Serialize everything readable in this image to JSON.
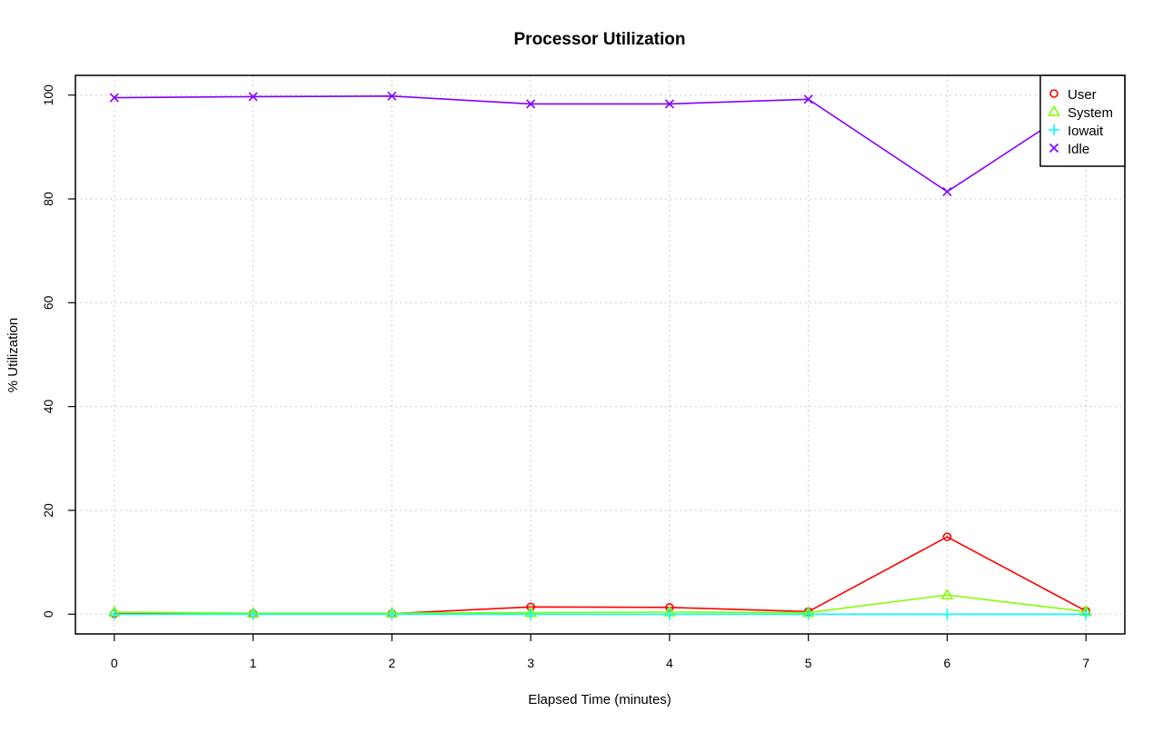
{
  "chart_data": {
    "type": "line",
    "title": "Processor Utilization",
    "xlabel": "Elapsed Time (minutes)",
    "ylabel": "% Utilization",
    "x": [
      0,
      1,
      2,
      3,
      4,
      5,
      6,
      7
    ],
    "xlim": [
      -0.28,
      7.28
    ],
    "ylim": [
      -3.8,
      103.8
    ],
    "xticks": [
      0,
      1,
      2,
      3,
      4,
      5,
      6,
      7
    ],
    "yticks": [
      0,
      20,
      40,
      60,
      80,
      100
    ],
    "grid": true,
    "legend_position": "top-right",
    "series": [
      {
        "name": "User",
        "color": "#ff0000",
        "marker": "circle",
        "values": [
          0.1,
          0.1,
          0.1,
          1.4,
          1.3,
          0.5,
          14.9,
          0.6
        ]
      },
      {
        "name": "System",
        "color": "#80ff00",
        "marker": "triangle",
        "values": [
          0.4,
          0.2,
          0.2,
          0.3,
          0.4,
          0.3,
          3.7,
          0.5
        ]
      },
      {
        "name": "Iowait",
        "color": "#00ffff",
        "marker": "plus",
        "values": [
          0.0,
          0.0,
          0.0,
          0.0,
          0.0,
          0.0,
          0.0,
          0.0
        ]
      },
      {
        "name": "Idle",
        "color": "#8000ff",
        "marker": "cross",
        "values": [
          99.5,
          99.7,
          99.8,
          98.3,
          98.3,
          99.2,
          81.4,
          98.9
        ]
      }
    ]
  }
}
